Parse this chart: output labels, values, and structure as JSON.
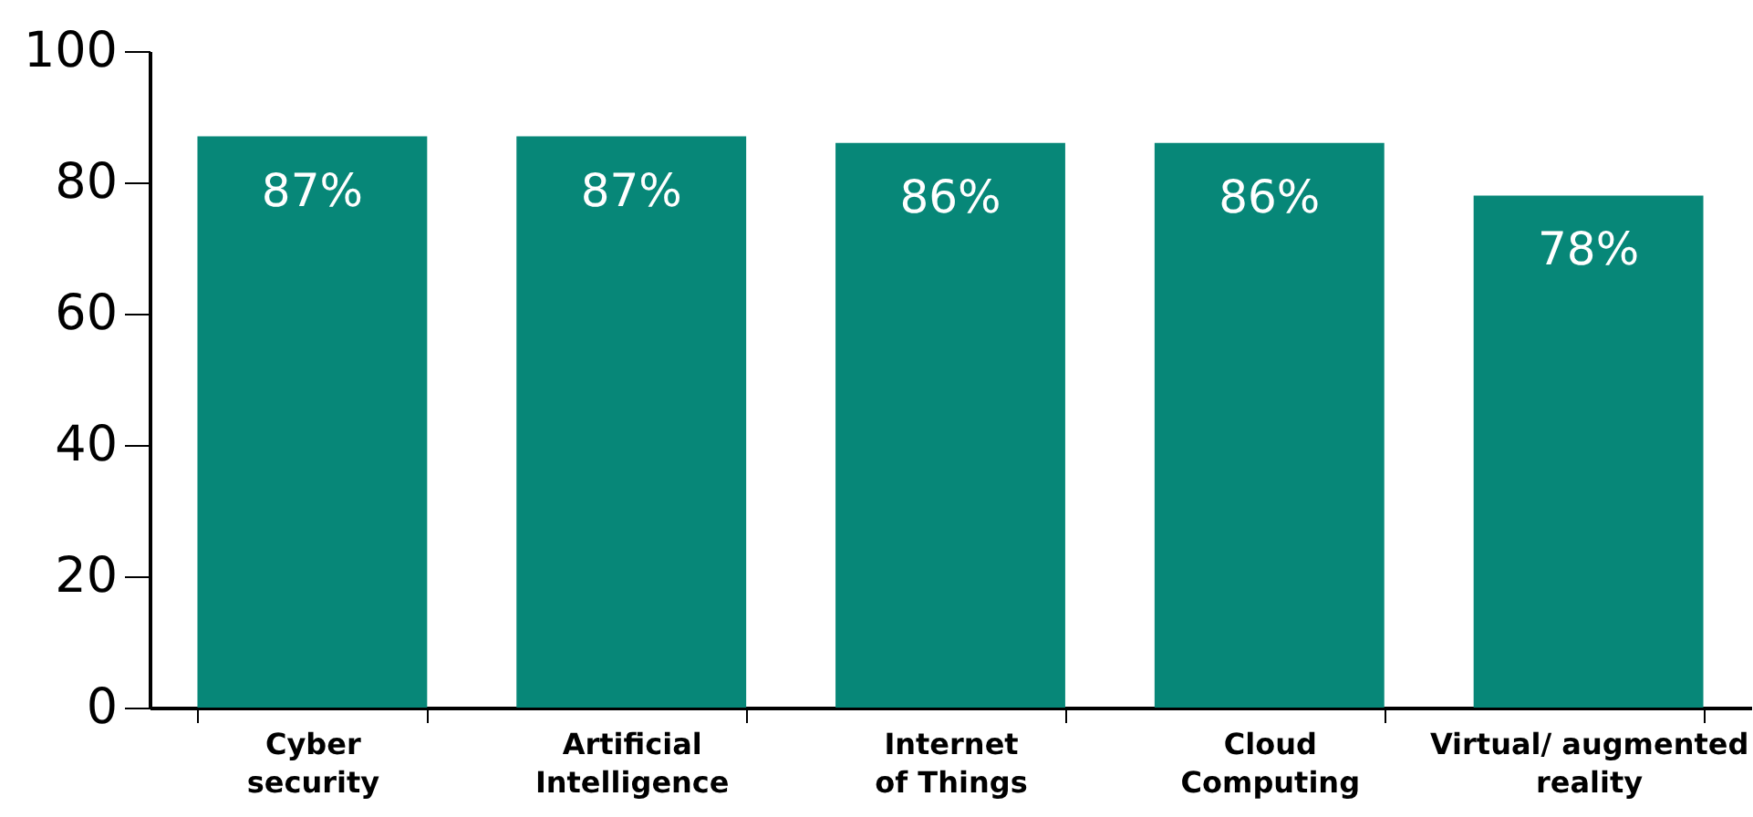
{
  "chart_data": {
    "type": "bar",
    "categories": [
      "Cyber security",
      "Artificial Intelligence",
      "Internet of Things",
      "Cloud Computing",
      "Virtual/ augmented reality"
    ],
    "values": [
      87,
      87,
      86,
      86,
      78
    ],
    "value_labels": [
      "87%",
      "87%",
      "86%",
      "86%",
      "78%"
    ],
    "color": "#078778",
    "ylim": [
      0,
      100
    ],
    "yticks": [
      0,
      20,
      40,
      60,
      80,
      100
    ],
    "grid": false
  }
}
